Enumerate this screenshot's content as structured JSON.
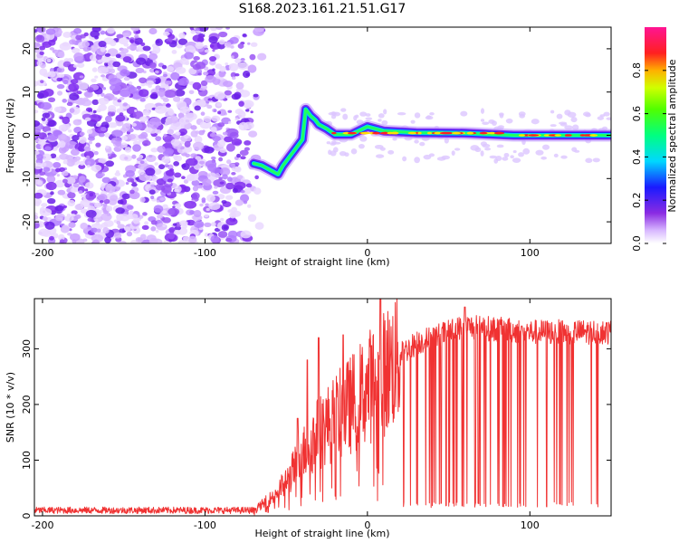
{
  "title": "S168.2023.161.21.51.G17",
  "colors": {
    "snr_line": "#f03232",
    "spectral_track_low": "#a040ff",
    "spectral_track_high": "#ff2020"
  },
  "chart_data": [
    {
      "type": "heatmap",
      "panel": "spectrogram",
      "xlabel": "Height of straight line (km)",
      "ylabel": "Frequency (Hz)",
      "xlim": [
        -205,
        150
      ],
      "ylim": [
        -25,
        25
      ],
      "x_ticks": [
        -200,
        -100,
        0,
        100
      ],
      "y_ticks": [
        -20,
        -10,
        0,
        10,
        20
      ],
      "colorbar": {
        "label": "Normalized spectral amplitude",
        "range": [
          0,
          1
        ],
        "ticks": [
          0.0,
          0.2,
          0.4,
          0.6,
          0.8
        ],
        "colormap": "rainbow (white-violet-blue-cyan-green-yellow-red-magenta)"
      },
      "noise_region": {
        "x_from": -205,
        "x_to": -65,
        "note_amplitude": [
          0.0,
          0.3
        ]
      },
      "dominant_frequency_track": [
        {
          "x": -70,
          "y": -6.5
        },
        {
          "x": -65,
          "y": -7
        },
        {
          "x": -60,
          "y": -8
        },
        {
          "x": -55,
          "y": -9
        },
        {
          "x": -52,
          "y": -7
        },
        {
          "x": -48,
          "y": -5
        },
        {
          "x": -44,
          "y": -3
        },
        {
          "x": -40,
          "y": -1
        },
        {
          "x": -38,
          "y": 6
        },
        {
          "x": -35,
          "y": 4.5
        },
        {
          "x": -32,
          "y": 3.5
        },
        {
          "x": -30,
          "y": 2.5
        },
        {
          "x": -25,
          "y": 1.5
        },
        {
          "x": -20,
          "y": 0.2
        },
        {
          "x": -10,
          "y": 0.2
        },
        {
          "x": 0,
          "y": 2
        },
        {
          "x": 10,
          "y": 1
        },
        {
          "x": 30,
          "y": 0.6
        },
        {
          "x": 60,
          "y": 0.5
        },
        {
          "x": 90,
          "y": 0
        },
        {
          "x": 120,
          "y": 0
        },
        {
          "x": 150,
          "y": 0
        }
      ]
    },
    {
      "type": "line",
      "panel": "snr",
      "xlabel": "Height of straight line (km)",
      "ylabel": "SNR (10 * v/v)",
      "xlim": [
        -205,
        150
      ],
      "ylim": [
        0,
        390
      ],
      "x_ticks": [
        -200,
        -100,
        0,
        100
      ],
      "y_ticks": [
        0,
        100,
        200,
        300
      ],
      "series": [
        {
          "baseline_envelope": [
            {
              "x": -205,
              "y": 10
            },
            {
              "x": -70,
              "y": 10
            },
            {
              "x": -60,
              "y": 30
            },
            {
              "x": -50,
              "y": 60
            },
            {
              "x": -40,
              "y": 110
            },
            {
              "x": -30,
              "y": 150
            },
            {
              "x": -20,
              "y": 175
            },
            {
              "x": -10,
              "y": 200
            },
            {
              "x": 0,
              "y": 230
            },
            {
              "x": 10,
              "y": 255
            },
            {
              "x": 20,
              "y": 290
            },
            {
              "x": 30,
              "y": 310
            },
            {
              "x": 50,
              "y": 330
            },
            {
              "x": 60,
              "y": 340
            },
            {
              "x": 80,
              "y": 335
            },
            {
              "x": 100,
              "y": 330
            },
            {
              "x": 120,
              "y": 330
            },
            {
              "x": 150,
              "y": 330
            }
          ],
          "peaks": [
            {
              "x": -43,
              "y": 175
            },
            {
              "x": -37,
              "y": 280
            },
            {
              "x": -30,
              "y": 320
            },
            {
              "x": -15,
              "y": 325
            },
            {
              "x": 8,
              "y": 390
            },
            {
              "x": 60,
              "y": 375
            }
          ],
          "dropout_region": {
            "x_from": 22,
            "x_to": 142,
            "min_y": 15
          }
        }
      ]
    }
  ]
}
